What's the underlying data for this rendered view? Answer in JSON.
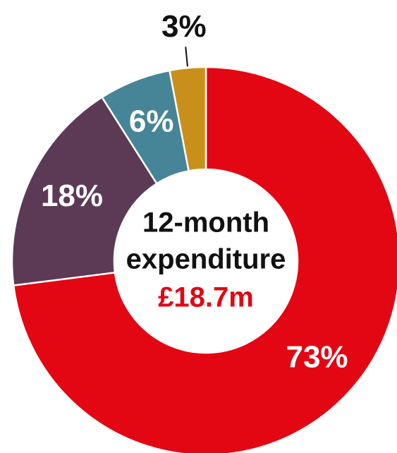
{
  "chart_data": {
    "type": "donut",
    "values": [
      73,
      18,
      6,
      3
    ],
    "value_labels": [
      "73%",
      "18%",
      "6%",
      "3%"
    ],
    "colors": [
      "#e30613",
      "#5c3a55",
      "#468597",
      "#c8901a"
    ],
    "center_label": [
      "12-month",
      "expenditure"
    ],
    "center_value": "£18.7m"
  }
}
